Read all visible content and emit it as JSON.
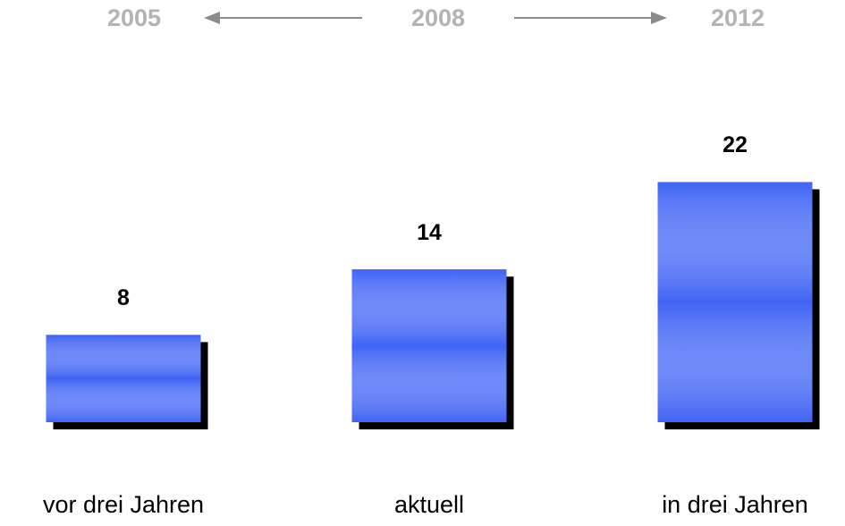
{
  "chart_data": {
    "type": "bar",
    "categories": [
      "vor drei Jahren",
      "aktuell",
      "in drei Jahren"
    ],
    "values": [
      8,
      14,
      22
    ],
    "annotations": [
      "2005",
      "2008",
      "2012"
    ],
    "color": "#3f63f5"
  }
}
